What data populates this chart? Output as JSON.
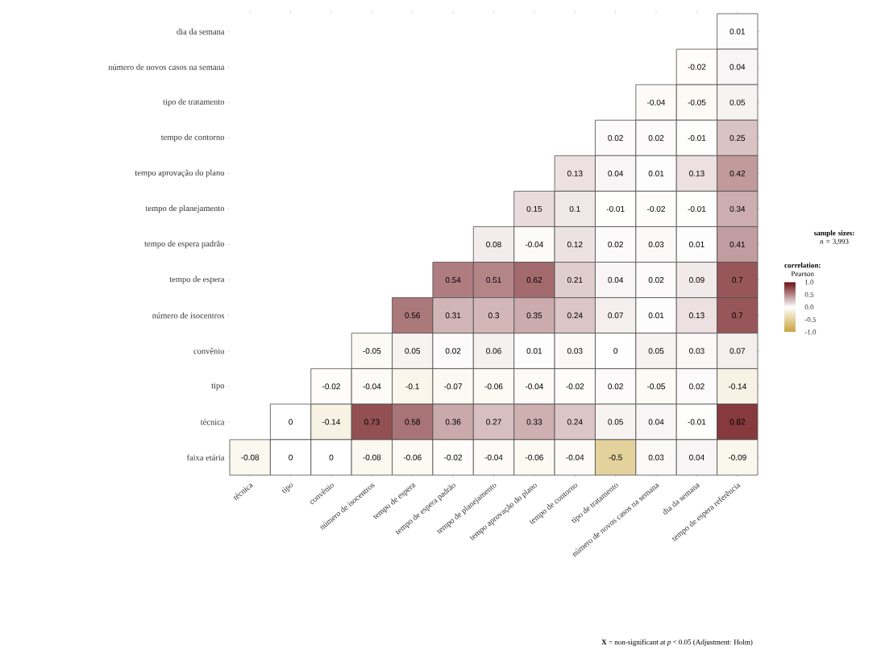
{
  "chart_data": {
    "type": "heatmap",
    "categories": [
      "técnica",
      "tipo",
      "convênio",
      "número de isocentros",
      "tempo de espera",
      "tempo de espera padrão",
      "tempo de planejamento",
      "tempo aprovação do plano",
      "tempo de contorno",
      "tipo de tratamento",
      "número de novos casos na semana",
      "dia da semana",
      "tempo de espera referência"
    ],
    "y_categories": [
      "dia da semana",
      "número de novos casos na semana",
      "tipo de tratamento",
      "tempo de contorno",
      "tempo aprovação do plano",
      "tempo de planejamento",
      "tempo de espera padrão",
      "tempo de espera",
      "número de isocentros",
      "convênio",
      "tipo",
      "técnica",
      "faixa etária"
    ],
    "cells": [
      [
        null,
        null,
        null,
        null,
        null,
        null,
        null,
        null,
        null,
        null,
        null,
        null,
        0.01
      ],
      [
        null,
        null,
        null,
        null,
        null,
        null,
        null,
        null,
        null,
        null,
        null,
        -0.02,
        0.04
      ],
      [
        null,
        null,
        null,
        null,
        null,
        null,
        null,
        null,
        null,
        null,
        -0.04,
        -0.05,
        0.05
      ],
      [
        null,
        null,
        null,
        null,
        null,
        null,
        null,
        null,
        null,
        0.02,
        0.02,
        -0.01,
        0.25
      ],
      [
        null,
        null,
        null,
        null,
        null,
        null,
        null,
        null,
        0.13,
        0.04,
        0.01,
        0.13,
        0.42
      ],
      [
        null,
        null,
        null,
        null,
        null,
        null,
        null,
        0.15,
        0.1,
        -0.01,
        -0.02,
        -0.01,
        0.34
      ],
      [
        null,
        null,
        null,
        null,
        null,
        null,
        0.08,
        -0.04,
        0.12,
        0.02,
        0.03,
        0.01,
        0.41
      ],
      [
        null,
        null,
        null,
        null,
        null,
        0.54,
        0.51,
        0.62,
        0.21,
        0.04,
        0.02,
        0.09,
        0.7
      ],
      [
        null,
        null,
        null,
        null,
        0.56,
        0.31,
        0.3,
        0.35,
        0.24,
        0.07,
        0.01,
        0.13,
        0.7
      ],
      [
        null,
        null,
        null,
        -0.05,
        0.05,
        0.02,
        0.06,
        0.01,
        0.03,
        0,
        0.05,
        0.03,
        0.07
      ],
      [
        null,
        null,
        -0.02,
        -0.04,
        -0.1,
        -0.07,
        -0.06,
        -0.04,
        -0.02,
        0.02,
        -0.05,
        0.02,
        -0.14
      ],
      [
        null,
        0,
        -0.14,
        0.73,
        0.58,
        0.36,
        0.27,
        0.33,
        0.24,
        0.05,
        0.04,
        -0.01,
        0.82
      ],
      [
        -0.08,
        0,
        0,
        -0.08,
        -0.06,
        -0.02,
        -0.04,
        -0.06,
        -0.04,
        -0.5,
        0.03,
        0.04,
        -0.09
      ]
    ],
    "data_labels": true,
    "clim": [
      -1,
      1
    ],
    "cticks": [
      {
        "value": -1,
        "label": "-1.0"
      },
      {
        "value": -0.5,
        "label": "-0.5"
      },
      {
        "value": 0,
        "label": "0.0"
      },
      {
        "value": 0.5,
        "label": "0.5"
      },
      {
        "value": 1,
        "label": "1.0"
      }
    ],
    "clabel": "**correlation:** Pearson",
    "annotations": [
      "**sample sizes:** *n* = 3,993",
      "**X** = non-significant at *p* < 0.05 (Adjustment: Holm)"
    ]
  }
}
